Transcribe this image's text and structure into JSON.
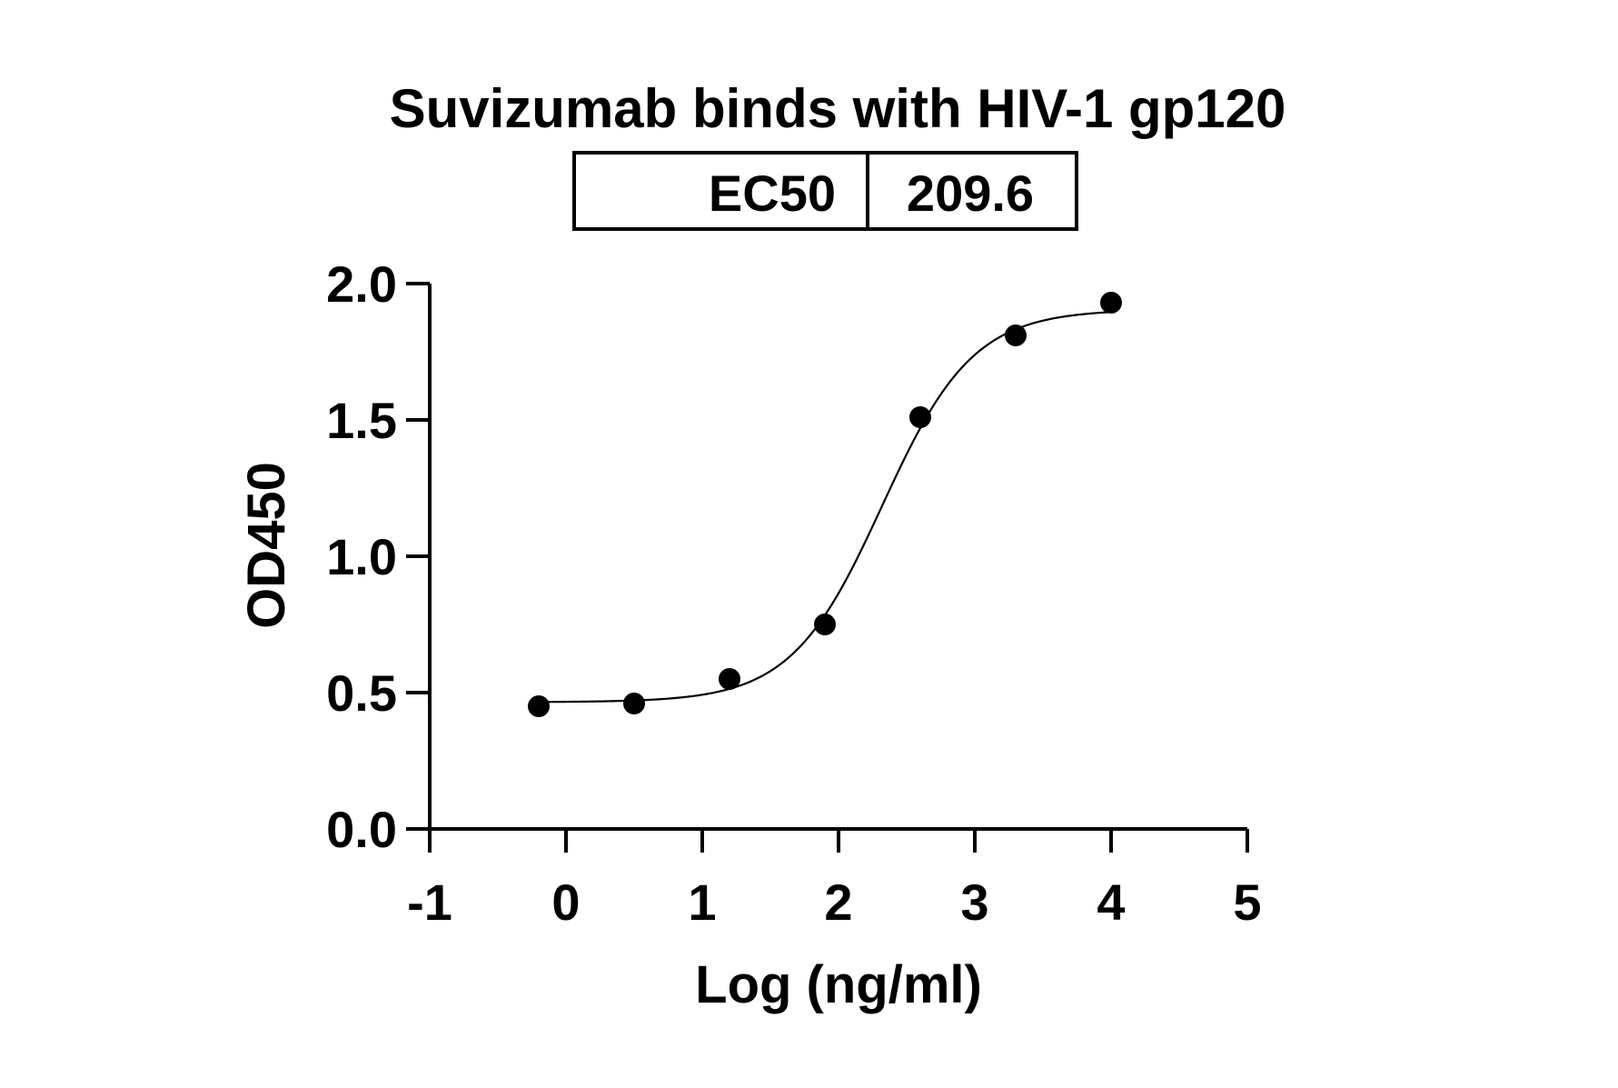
{
  "chart_data": {
    "type": "scatter",
    "title": "Suvizumab binds with HIV-1 gp120",
    "xlabel": "Log (ng/ml)",
    "ylabel": "OD450",
    "xlim": [
      -1,
      5
    ],
    "ylim": [
      0,
      2
    ],
    "xticks": [
      "-1",
      "0",
      "1",
      "2",
      "3",
      "4",
      "5"
    ],
    "yticks": [
      "0.0",
      "0.5",
      "1.0",
      "1.5",
      "2.0"
    ],
    "ec50_table": {
      "label": "EC50",
      "value": "209.6"
    },
    "points": [
      {
        "x": -0.2,
        "y": 0.45
      },
      {
        "x": 0.5,
        "y": 0.46
      },
      {
        "x": 1.2,
        "y": 0.55
      },
      {
        "x": 1.9,
        "y": 0.75
      },
      {
        "x": 2.6,
        "y": 1.51
      },
      {
        "x": 3.3,
        "y": 1.81
      },
      {
        "x": 4.0,
        "y": 1.93
      }
    ],
    "fit_curve": {
      "bottom": 0.465,
      "top": 1.905,
      "log_ec50": 2.32,
      "hill_slope": 1.3,
      "x_range": [
        -0.2,
        4.0
      ]
    },
    "grid": false,
    "legend": "none"
  }
}
